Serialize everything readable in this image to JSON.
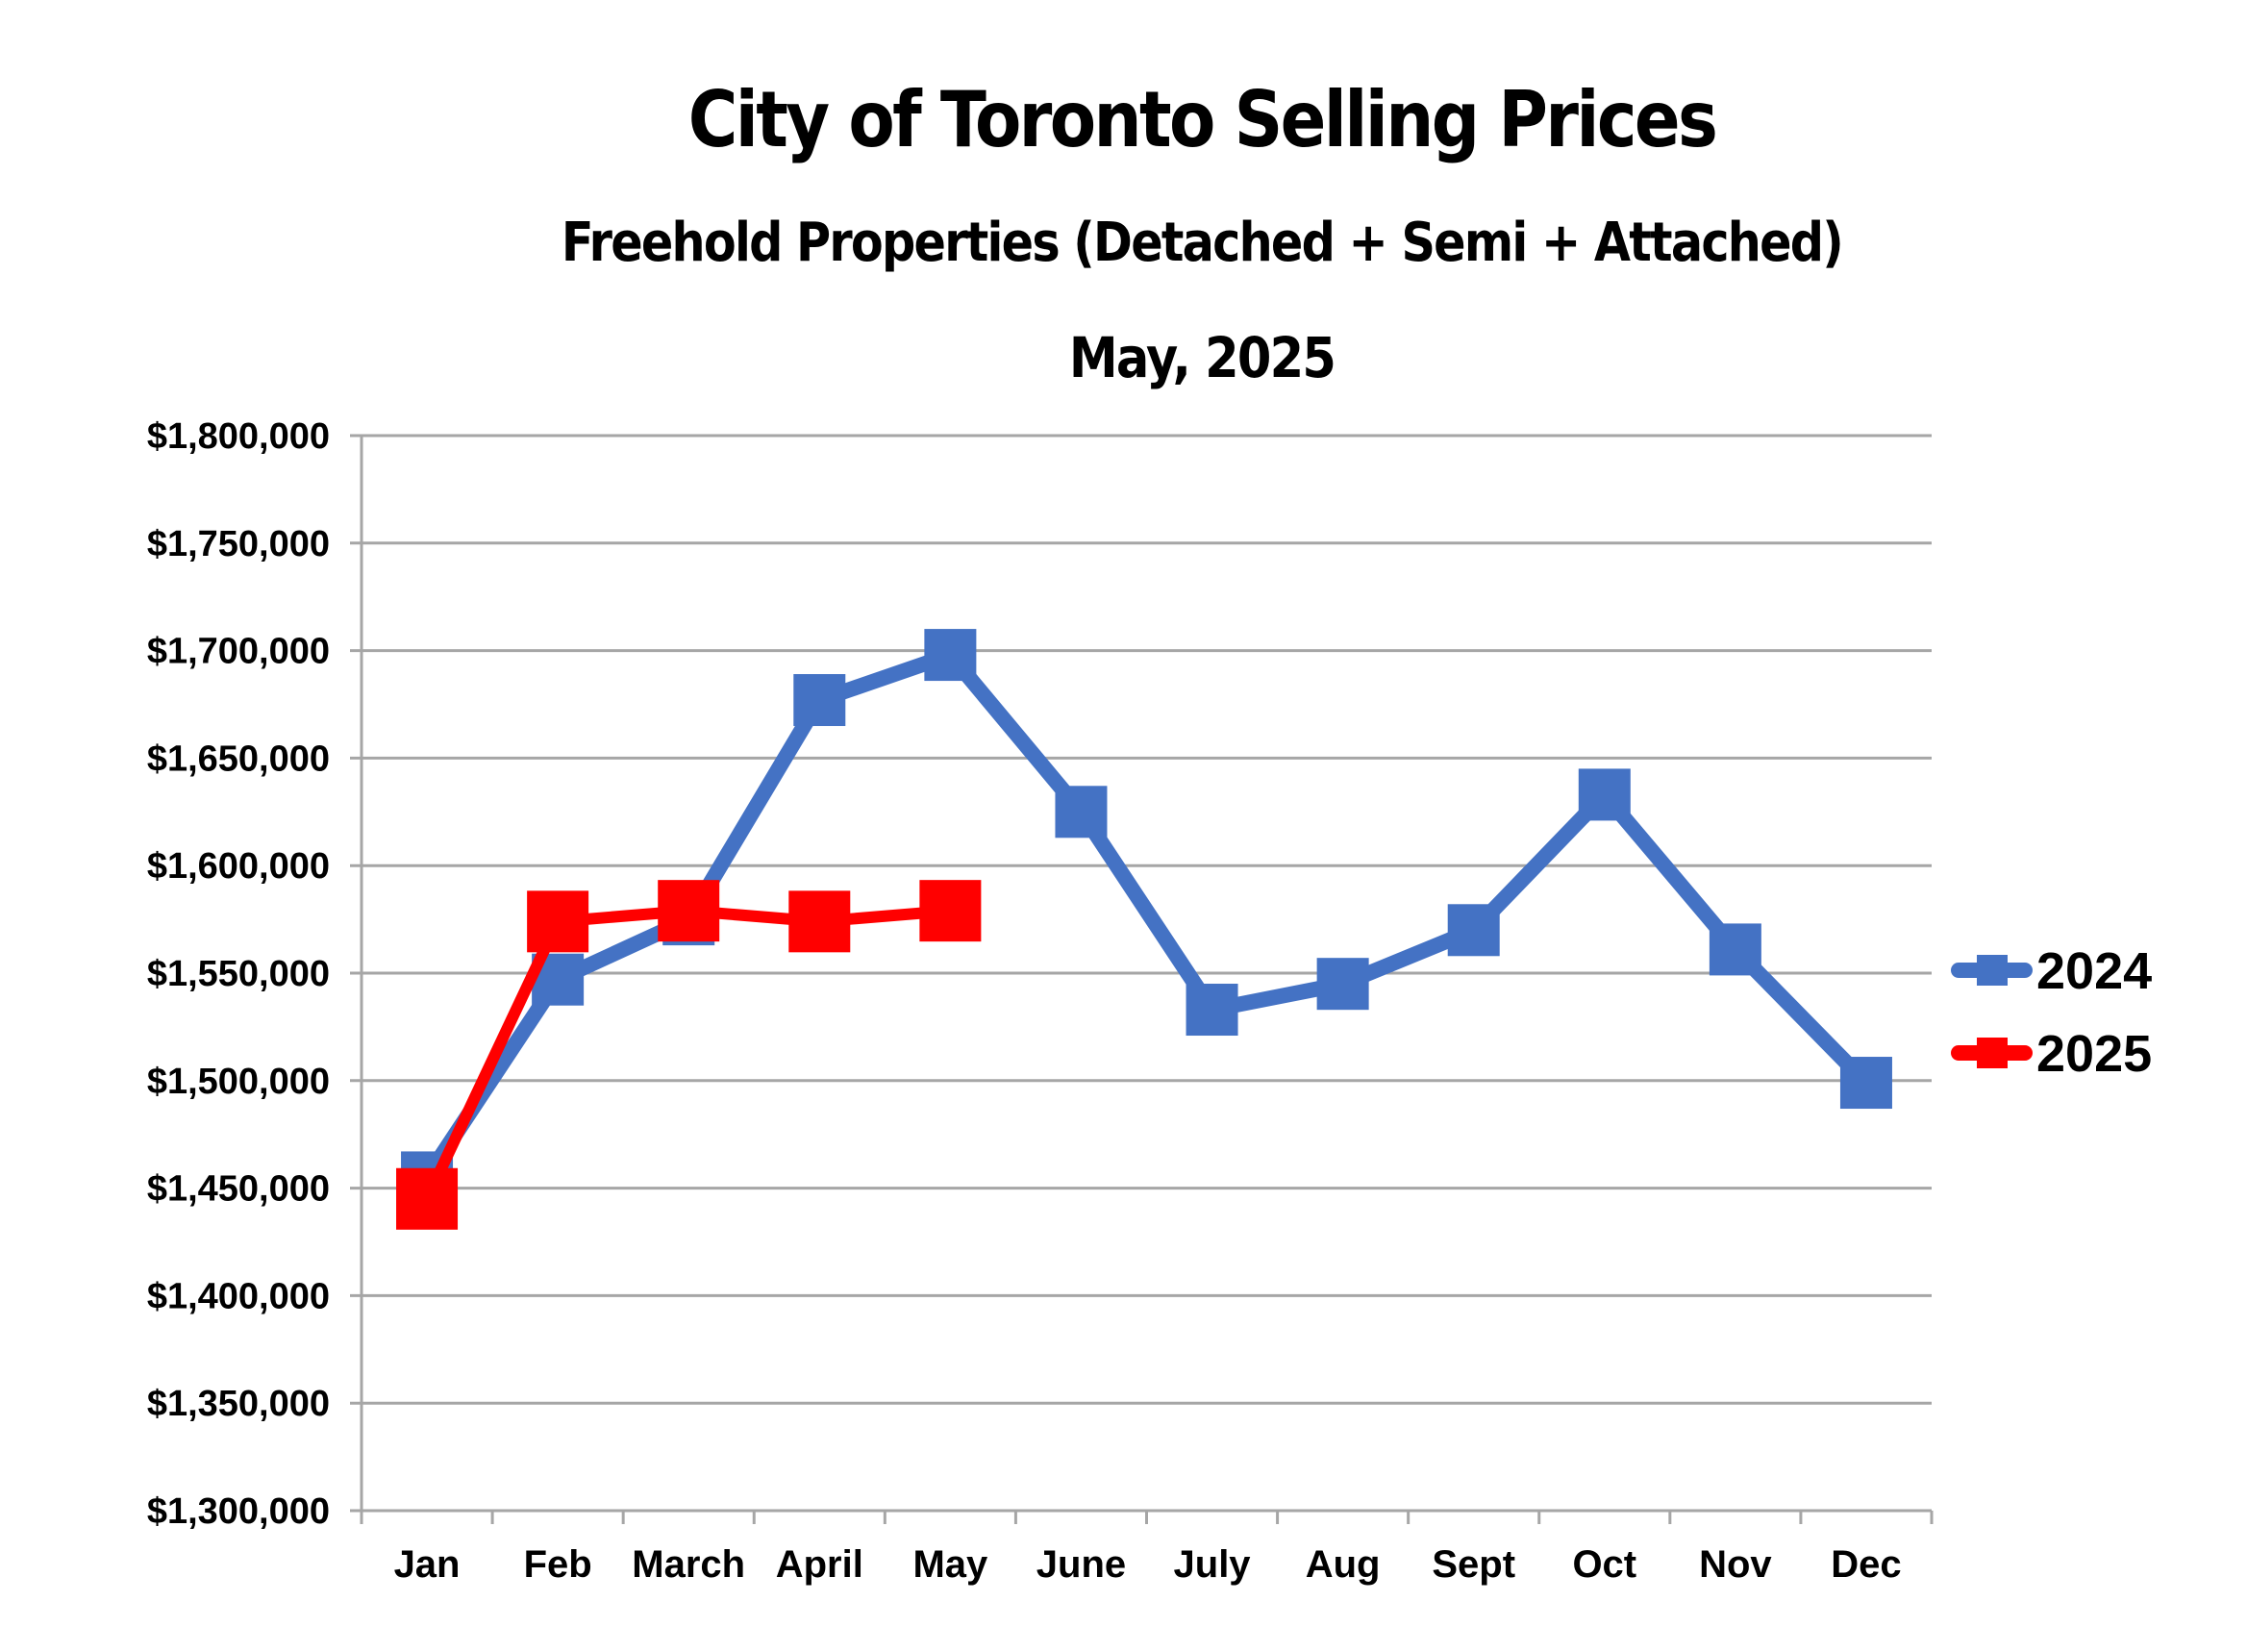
{
  "chart_data": {
    "type": "line",
    "title": "City of Toronto Selling Prices",
    "subtitle": "Freehold Properties (Detached + Semi + Attached)",
    "date_label": "May, 2025",
    "xlabel": "",
    "ylabel": "",
    "categories": [
      "Jan",
      "Feb",
      "March",
      "April",
      "May",
      "June",
      "July",
      "Aug",
      "Sept",
      "Oct",
      "Nov",
      "Dec"
    ],
    "ylim": [
      1300000,
      1800000
    ],
    "yticks": [
      1300000,
      1350000,
      1400000,
      1450000,
      1500000,
      1550000,
      1600000,
      1650000,
      1700000,
      1750000,
      1800000
    ],
    "ytick_labels": [
      "$1,300,000",
      "$1,350,000",
      "$1,400,000",
      "$1,450,000",
      "$1,500,000",
      "$1,550,000",
      "$1,600,000",
      "$1,650,000",
      "$1,700,000",
      "$1,750,000",
      "$1,800,000"
    ],
    "grid": true,
    "legend_position": "right",
    "series": [
      {
        "name": "2024",
        "color": "#4472C4",
        "values": [
          1455000,
          1547000,
          1575000,
          1677000,
          1698000,
          1625000,
          1533000,
          1545000,
          1570000,
          1633000,
          1561000,
          1499000
        ]
      },
      {
        "name": "2025",
        "color": "#FF0000",
        "values": [
          1445000,
          1574000,
          1579000,
          1574000,
          1579000,
          null,
          null,
          null,
          null,
          null,
          null,
          null
        ]
      }
    ]
  }
}
